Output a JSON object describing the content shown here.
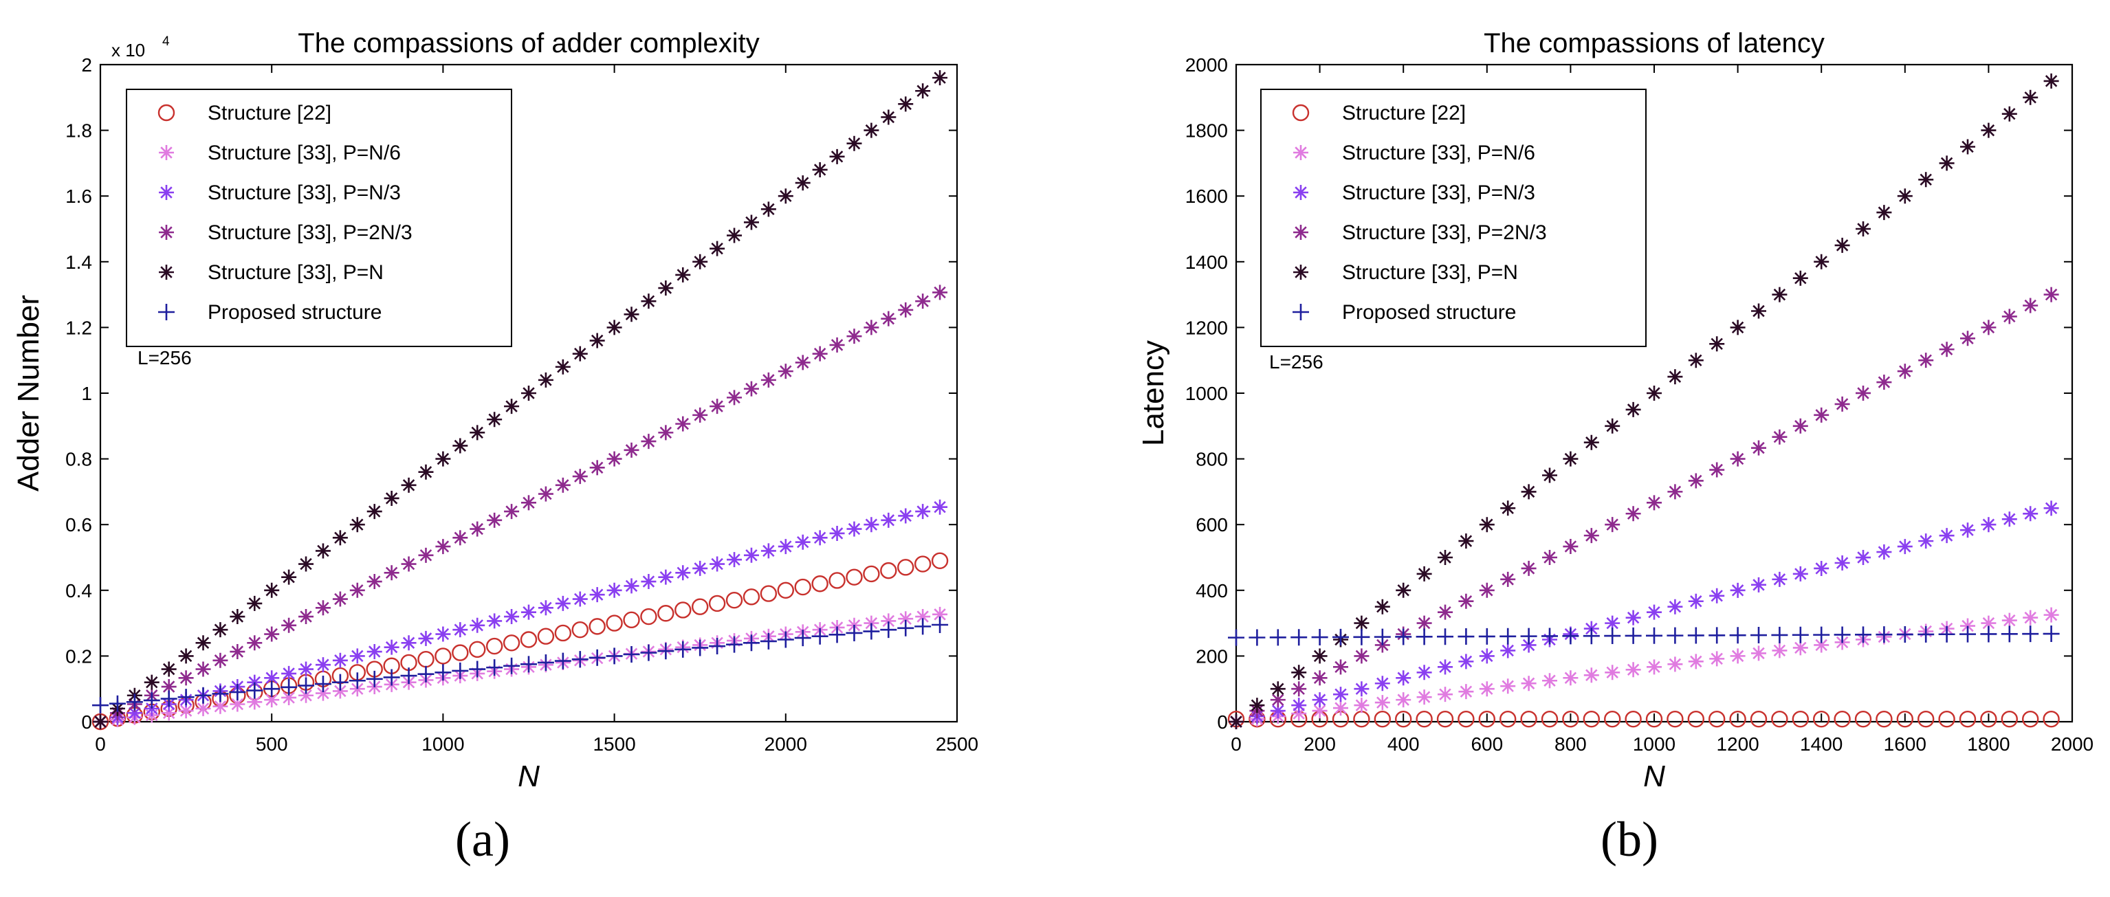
{
  "colors": {
    "structure22": "#c8312d",
    "p_n6": "#e07be0",
    "p_n3": "#8a3ff0",
    "p_2n3": "#8e2a8e",
    "p_n": "#2a0a24",
    "proposed": "#1f1f9e"
  },
  "chart_data": [
    {
      "type": "scatter",
      "panel_label": "(a)",
      "title": "The compassions of adder complexity",
      "xlabel": "N",
      "ylabel": "Adder Number",
      "y_exponent_label": "x 10",
      "y_exponent_power": "4",
      "annotation": "L=256",
      "grid": false,
      "legend_position": "top-left",
      "xlim": [
        0,
        2500
      ],
      "ylim": [
        0,
        20000
      ],
      "x_ticks": [
        0,
        500,
        1000,
        1500,
        2000,
        2500
      ],
      "x_tick_labels": [
        "0",
        "500",
        "1000",
        "1500",
        "2000",
        "2500"
      ],
      "y_ticks": [
        0,
        2000,
        4000,
        6000,
        8000,
        10000,
        12000,
        14000,
        16000,
        18000,
        20000
      ],
      "y_tick_labels": [
        "0",
        "0.2",
        "0.4",
        "0.6",
        "0.8",
        "1",
        "1.2",
        "1.4",
        "1.6",
        "1.8",
        "2"
      ],
      "x": {
        "start": 0,
        "step": 50,
        "count": 50
      },
      "series": [
        {
          "name": "Structure [22]",
          "marker": "circle",
          "color_key": "structure22",
          "y_start": 0,
          "y_slope": 2.0
        },
        {
          "name": "Structure [33], P=N/6",
          "marker": "star",
          "color_key": "p_n6",
          "y_start": 0,
          "y_slope": 1.3333
        },
        {
          "name": "Structure [33], P=N/3",
          "marker": "star",
          "color_key": "p_n3",
          "y_start": 0,
          "y_slope": 2.6667
        },
        {
          "name": "Structure [33], P=2N/3",
          "marker": "star",
          "color_key": "p_2n3",
          "y_start": 0,
          "y_slope": 5.3333
        },
        {
          "name": "Structure [33], P=N",
          "marker": "star",
          "color_key": "p_n",
          "y_start": 0,
          "y_slope": 8.0
        },
        {
          "name": "Proposed structure",
          "marker": "plus",
          "color_key": "proposed",
          "y_start": 500,
          "y_slope": 1.0
        }
      ]
    },
    {
      "type": "scatter",
      "panel_label": "(b)",
      "title": "The compassions of latency",
      "xlabel": "N",
      "ylabel": "Latency",
      "annotation": "L=256",
      "grid": false,
      "legend_position": "top-left",
      "xlim": [
        0,
        2000
      ],
      "ylim": [
        0,
        2000
      ],
      "x_ticks": [
        0,
        200,
        400,
        600,
        800,
        1000,
        1200,
        1400,
        1600,
        1800,
        2000
      ],
      "x_tick_labels": [
        "0",
        "200",
        "400",
        "600",
        "800",
        "1000",
        "1200",
        "1400",
        "1600",
        "1800",
        "2000"
      ],
      "y_ticks": [
        0,
        200,
        400,
        600,
        800,
        1000,
        1200,
        1400,
        1600,
        1800,
        2000
      ],
      "y_tick_labels": [
        "0",
        "200",
        "400",
        "600",
        "800",
        "1000",
        "1200",
        "1400",
        "1600",
        "1800",
        "2000"
      ],
      "x": {
        "start": 0,
        "step": 50,
        "count": 40
      },
      "series": [
        {
          "name": "Structure [22]",
          "marker": "circle",
          "color_key": "structure22",
          "y_start": 8,
          "y_slope": 0
        },
        {
          "name": "Structure [33], P=N/6",
          "marker": "star",
          "color_key": "p_n6",
          "y_start": 0,
          "y_slope": 0.1667
        },
        {
          "name": "Structure [33], P=N/3",
          "marker": "star",
          "color_key": "p_n3",
          "y_start": 0,
          "y_slope": 0.3333
        },
        {
          "name": "Structure [33], P=2N/3",
          "marker": "star",
          "color_key": "p_2n3",
          "y_start": 0,
          "y_slope": 0.6667
        },
        {
          "name": "Structure [33], P=N",
          "marker": "star",
          "color_key": "p_n",
          "y_start": 0,
          "y_slope": 1.0
        },
        {
          "name": "Proposed structure",
          "marker": "plus",
          "color_key": "proposed",
          "y_start": 256,
          "y_slope": 0.006
        }
      ]
    }
  ]
}
